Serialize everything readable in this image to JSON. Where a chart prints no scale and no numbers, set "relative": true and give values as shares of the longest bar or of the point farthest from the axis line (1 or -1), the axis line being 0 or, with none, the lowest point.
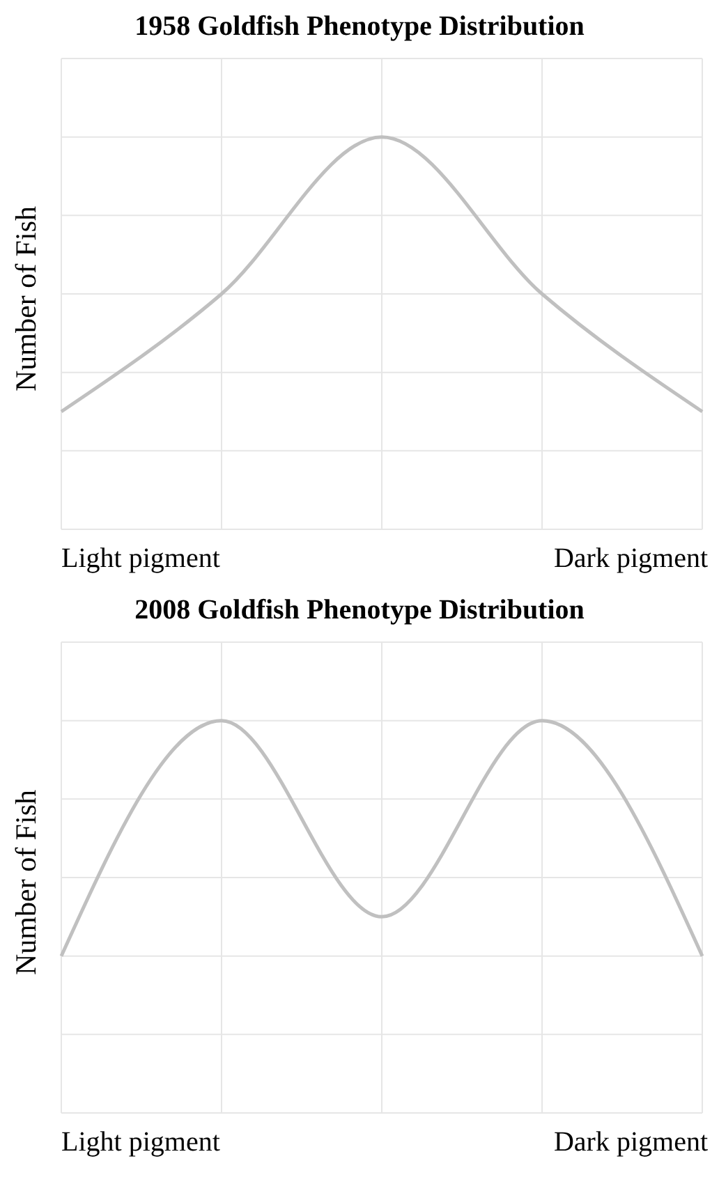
{
  "chart_data": [
    {
      "type": "line",
      "title": "1958 Goldfish Phenotype Distribution",
      "ylabel": "Number of Fish",
      "categories": [
        null,
        null,
        null,
        null,
        null
      ],
      "relative": true,
      "grid": true,
      "marker": "none",
      "annotations": [
        "Light pigment",
        "Dark pigment"
      ],
      "series": [
        {
          "color": "#c0c0c0",
          "values": [
            0.3,
            0.6,
            1,
            0.6,
            0.3
          ]
        }
      ]
    },
    {
      "type": "line",
      "title": "2008 Goldfish Phenotype Distribution",
      "ylabel": "Number of Fish",
      "categories": [
        null,
        null,
        null,
        null,
        null
      ],
      "relative": true,
      "grid": true,
      "marker": "none",
      "annotations": [
        "Light pigment",
        "Dark pigment"
      ],
      "series": [
        {
          "color": "#c0c0c0",
          "values": [
            0.4,
            1,
            0.5,
            1,
            0.4
          ]
        }
      ]
    }
  ]
}
